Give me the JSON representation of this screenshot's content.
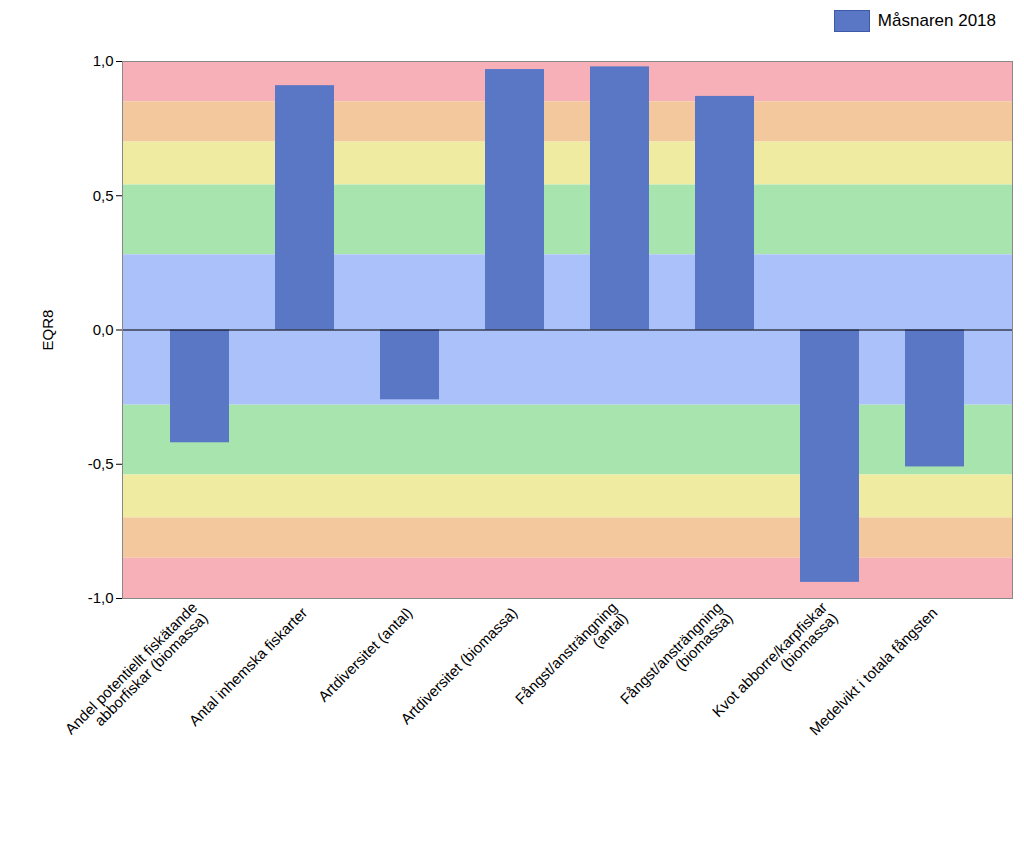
{
  "chart_data": {
    "type": "bar",
    "y_label": "EQR8",
    "categories": [
      "Andel potentiellt fiskätande\nabborfiskar (biomassa)",
      "Antal inhemska fiskarter",
      "Artdiversitet (antal)",
      "Artdiversitet (biomassa)",
      "Fångst/ansträngning\n(antal)",
      "Fångst/ansträngning\n(biomassa)",
      "Kvot abborre/karpfiskar\n(biomassa)",
      "Medelvikt i totala fångsten"
    ],
    "series": [
      {
        "name": "Måsnaren 2018",
        "color": "#5a77c6",
        "values": [
          -0.42,
          0.91,
          -0.26,
          0.97,
          0.98,
          0.87,
          -0.94,
          -0.51
        ]
      }
    ],
    "ylim": [
      -1,
      1
    ],
    "yticks": [
      {
        "value": -1,
        "label": "-1,0"
      },
      {
        "value": -0.5,
        "label": "-0,5"
      },
      {
        "value": 0,
        "label": "0,0"
      },
      {
        "value": 0.5,
        "label": "0,5"
      },
      {
        "value": 1,
        "label": "1,0"
      }
    ],
    "bands": [
      {
        "from": 0.85,
        "to": 1,
        "color": "#f7b0b8"
      },
      {
        "from": 0.7,
        "to": 0.85,
        "color": "#f2c89c"
      },
      {
        "from": 0.54,
        "to": 0.7,
        "color": "#efeba0"
      },
      {
        "from": 0.28,
        "to": 0.54,
        "color": "#a8e4ad"
      },
      {
        "from": -0.28,
        "to": 0.28,
        "color": "#abc1fa"
      },
      {
        "from": -0.54,
        "to": -0.28,
        "color": "#a8e4ad"
      },
      {
        "from": -0.7,
        "to": -0.54,
        "color": "#efeba0"
      },
      {
        "from": -0.85,
        "to": -0.7,
        "color": "#f2c89c"
      },
      {
        "from": -1,
        "to": -0.85,
        "color": "#f7b0b8"
      }
    ],
    "grid": false,
    "legend": "top-right"
  }
}
